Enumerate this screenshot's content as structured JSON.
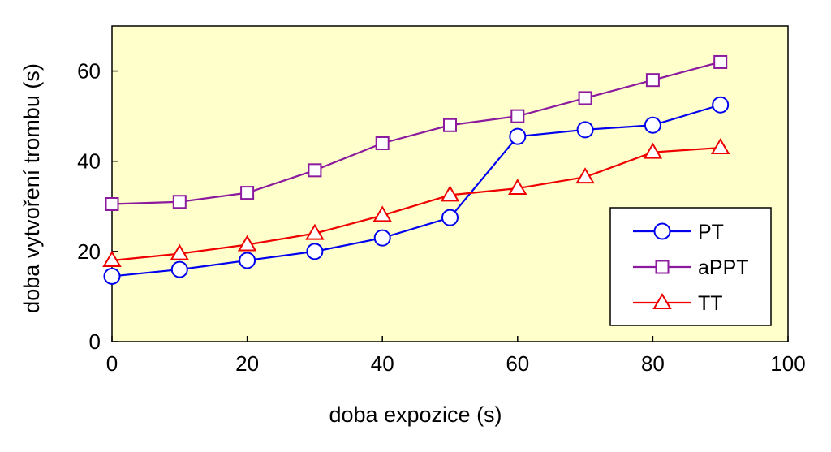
{
  "chart_data": {
    "type": "line",
    "xlabel": "doba expozice (s)",
    "ylabel": "doba vytvoření trombu (s)",
    "xlim": [
      0,
      100
    ],
    "ylim": [
      0,
      70
    ],
    "xticks": [
      "0",
      "20",
      "40",
      "60",
      "80",
      "100"
    ],
    "yticks": [
      "0",
      "20",
      "40",
      "60"
    ],
    "xtick_values": [
      0,
      20,
      40,
      60,
      80,
      100
    ],
    "ytick_values": [
      0,
      20,
      40,
      60
    ],
    "background": "#ffffcc",
    "grid": false,
    "legend_position": "bottom-right",
    "series": [
      {
        "name": "PT",
        "color": "#0000ee",
        "marker": "circle",
        "x": [
          0,
          10,
          20,
          30,
          40,
          50,
          60,
          70,
          80,
          90
        ],
        "y": [
          14.5,
          16,
          18,
          20,
          23,
          27.5,
          45.5,
          47,
          48,
          52.5
        ]
      },
      {
        "name": "aPPT",
        "color": "#8b1a9e",
        "marker": "square",
        "x": [
          0,
          10,
          20,
          30,
          40,
          50,
          60,
          70,
          80,
          90
        ],
        "y": [
          30.5,
          31,
          33,
          38,
          44,
          48,
          50,
          54,
          58,
          62
        ]
      },
      {
        "name": "TT",
        "color": "#ee0000",
        "marker": "triangle",
        "x": [
          0,
          10,
          20,
          30,
          40,
          50,
          60,
          70,
          80,
          90
        ],
        "y": [
          18,
          19.5,
          21.5,
          24,
          28,
          32.5,
          34,
          36.5,
          42,
          43
        ]
      }
    ]
  }
}
